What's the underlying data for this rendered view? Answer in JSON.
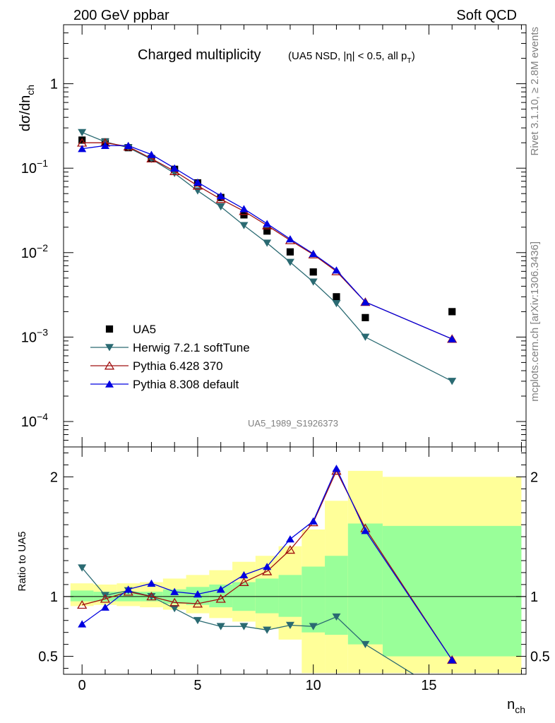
{
  "header": {
    "left_label": "200 GeV ppbar",
    "right_label": "Soft QCD"
  },
  "side_labels": {
    "top": "Rivet 3.1.10, ≥ 2.8M events",
    "bottom": "mcplots.cern.ch [arXiv:1306.3436]"
  },
  "analysis_id": "UA5_1989_S1926373",
  "colors": {
    "data": "#000000",
    "herwig": "#2a6a72",
    "pythia6": "#a01010",
    "pythia8": "#0000e0",
    "band_outer": "#ffff99",
    "band_inner": "#99ff99"
  },
  "chart_data": [
    {
      "type": "scatter",
      "title": "Charged multiplicity",
      "subtitle": "(UA5 NSD, |η| < 0.5, all pT)",
      "xlabel": "nch",
      "ylabel": "dσ/dnch",
      "log_y": true,
      "xlim": [
        -0.8,
        19.2
      ],
      "ylim": [
        5e-05,
        5.0
      ],
      "ytick_labels": [
        "10^-4",
        "10^-3",
        "10^-2",
        "10^-1",
        "1"
      ],
      "xtick_labels": [
        "0",
        "5",
        "10",
        "15"
      ],
      "legend_position": "lower-left",
      "x": [
        0,
        1,
        2,
        3,
        4,
        5,
        6,
        7,
        8,
        9,
        10,
        11,
        12.25,
        16
      ],
      "series": [
        {
          "name": "UA5",
          "marker": "square",
          "values": [
            0.215,
            0.205,
            0.175,
            0.13,
            0.097,
            0.067,
            0.045,
            0.028,
            0.018,
            0.0102,
            0.0059,
            0.003,
            0.0017,
            0.002
          ]
        },
        {
          "name": "Herwig 7.2.1 softTune",
          "marker": "triangle-down",
          "values": [
            0.265,
            0.205,
            0.175,
            0.128,
            0.087,
            0.054,
            0.035,
            0.021,
            0.013,
            0.0077,
            0.0045,
            0.0025,
            0.001,
            0.0003
          ]
        },
        {
          "name": "Pythia 6.428 370",
          "marker": "triangle-up-open",
          "values": [
            0.2,
            0.2,
            0.18,
            0.13,
            0.092,
            0.062,
            0.043,
            0.031,
            0.021,
            0.014,
            0.0095,
            0.006,
            0.0026,
            0.00095
          ]
        },
        {
          "name": "Pythia 8.308 default",
          "marker": "triangle-up",
          "values": [
            0.17,
            0.185,
            0.185,
            0.145,
            0.1,
            0.068,
            0.047,
            0.033,
            0.022,
            0.0145,
            0.0097,
            0.0062,
            0.0026,
            0.00095
          ]
        }
      ]
    },
    {
      "type": "line",
      "ylabel": "Ratio to UA5",
      "xlabel": "nch",
      "xlim": [
        -0.8,
        19.2
      ],
      "ylim": [
        0.35,
        2.25
      ],
      "ytick_labels": [
        "0.5",
        "1",
        "2"
      ],
      "xtick_labels": [
        "0",
        "5",
        "10",
        "15"
      ],
      "reference_line": 1.0,
      "bands": {
        "bin_edges": [
          -0.5,
          0.5,
          1.5,
          2.5,
          3.5,
          4.5,
          5.5,
          6.5,
          7.5,
          8.5,
          9.5,
          10.5,
          11.5,
          13.0,
          19.0
        ],
        "inner_low": [
          0.96,
          0.96,
          0.96,
          0.96,
          0.94,
          0.93,
          0.91,
          0.88,
          0.86,
          0.83,
          0.7,
          0.68,
          0.6,
          0.5
        ],
        "inner_high": [
          1.05,
          1.04,
          1.04,
          1.04,
          1.06,
          1.08,
          1.1,
          1.12,
          1.15,
          1.18,
          1.25,
          1.34,
          1.61,
          1.59
        ],
        "outer_low": [
          0.92,
          0.93,
          0.92,
          0.91,
          0.89,
          0.86,
          0.82,
          0.79,
          0.73,
          0.64,
          0.36,
          0.36,
          0.36,
          0.36
        ],
        "outer_high": [
          1.11,
          1.1,
          1.11,
          1.12,
          1.15,
          1.18,
          1.22,
          1.29,
          1.34,
          1.42,
          1.56,
          1.8,
          2.05,
          2.0
        ]
      },
      "x": [
        0,
        1,
        2,
        3,
        4,
        5,
        6,
        7,
        8,
        9,
        10,
        11,
        12.25,
        16
      ],
      "series": [
        {
          "name": "Herwig 7.2.1 softTune",
          "values": [
            1.24,
            1.01,
            1.05,
            1.0,
            0.9,
            0.8,
            0.75,
            0.75,
            0.72,
            0.76,
            0.75,
            0.83,
            0.6,
            0.15
          ]
        },
        {
          "name": "Pythia 6.428 370",
          "values": [
            0.93,
            0.98,
            1.04,
            1.0,
            0.95,
            0.94,
            0.98,
            1.12,
            1.21,
            1.39,
            1.62,
            2.05,
            1.57,
            0.47
          ]
        },
        {
          "name": "Pythia 8.308 default",
          "values": [
            0.77,
            0.91,
            1.06,
            1.11,
            1.04,
            1.02,
            1.06,
            1.18,
            1.25,
            1.48,
            1.63,
            2.07,
            1.55,
            0.47
          ]
        }
      ]
    }
  ]
}
